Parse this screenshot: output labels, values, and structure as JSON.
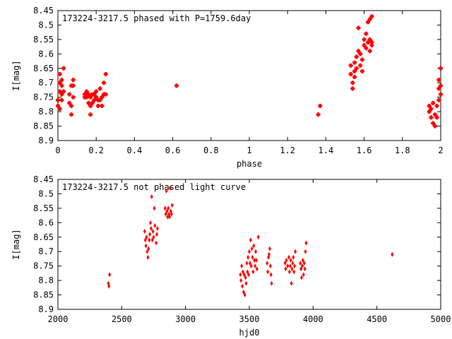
{
  "chart_data": [
    {
      "type": "scatter",
      "title": "173224-3217.5 phased with P=1759.6day",
      "xlabel": "phase",
      "ylabel": "I[mag]",
      "xlim": [
        0,
        2
      ],
      "ylim": [
        8.45,
        8.9
      ],
      "y_inverted": true,
      "xticks": [
        "0",
        "0.2",
        "0.4",
        "0.6",
        "0.8",
        "1",
        "1.2",
        "1.4",
        "1.6",
        "1.8",
        "2"
      ],
      "yticks": [
        "8.45",
        "8.5",
        "8.55",
        "8.6",
        "8.65",
        "8.7",
        "8.75",
        "8.8",
        "8.85",
        "8.9"
      ],
      "marker": "plus",
      "color": "#ff0000",
      "series": [
        {
          "points": [
            [
              0.0,
              8.76
            ],
            [
              0.0,
              8.78
            ],
            [
              0.01,
              8.79
            ],
            [
              0.01,
              8.7
            ],
            [
              0.01,
              8.73
            ],
            [
              0.01,
              8.67
            ],
            [
              0.02,
              8.74
            ],
            [
              0.02,
              8.71
            ],
            [
              0.02,
              8.76
            ],
            [
              0.02,
              8.69
            ],
            [
              0.03,
              8.65
            ],
            [
              0.03,
              8.73
            ],
            [
              0.06,
              8.74
            ],
            [
              0.06,
              8.77
            ],
            [
              0.07,
              8.71
            ],
            [
              0.07,
              8.78
            ],
            [
              0.07,
              8.81
            ],
            [
              0.08,
              8.75
            ],
            [
              0.08,
              8.71
            ],
            [
              0.08,
              8.69
            ],
            [
              0.14,
              8.74
            ],
            [
              0.14,
              8.75
            ],
            [
              0.15,
              8.73
            ],
            [
              0.15,
              8.75
            ],
            [
              0.16,
              8.77
            ],
            [
              0.16,
              8.74
            ],
            [
              0.17,
              8.78
            ],
            [
              0.17,
              8.81
            ],
            [
              0.17,
              8.75
            ],
            [
              0.18,
              8.74
            ],
            [
              0.18,
              8.77
            ],
            [
              0.19,
              8.76
            ],
            [
              0.19,
              8.74
            ],
            [
              0.2,
              8.75
            ],
            [
              0.2,
              8.73
            ],
            [
              0.21,
              8.76
            ],
            [
              0.21,
              8.78
            ],
            [
              0.22,
              8.72
            ],
            [
              0.22,
              8.76
            ],
            [
              0.23,
              8.75
            ],
            [
              0.23,
              8.78
            ],
            [
              0.24,
              8.74
            ],
            [
              0.24,
              8.7
            ],
            [
              0.25,
              8.67
            ],
            [
              0.25,
              8.74
            ],
            [
              0.62,
              8.71
            ],
            [
              1.36,
              8.81
            ],
            [
              1.37,
              8.78
            ],
            [
              1.53,
              8.64
            ],
            [
              1.53,
              8.67
            ],
            [
              1.54,
              8.7
            ],
            [
              1.54,
              8.72
            ],
            [
              1.55,
              8.63
            ],
            [
              1.55,
              8.66
            ],
            [
              1.55,
              8.68
            ],
            [
              1.56,
              8.61
            ],
            [
              1.56,
              8.65
            ],
            [
              1.57,
              8.51
            ],
            [
              1.57,
              8.59
            ],
            [
              1.58,
              8.64
            ],
            [
              1.58,
              8.6
            ],
            [
              1.59,
              8.66
            ],
            [
              1.59,
              8.62
            ],
            [
              1.6,
              8.55
            ],
            [
              1.6,
              8.57
            ],
            [
              1.61,
              8.53
            ],
            [
              1.61,
              8.58
            ],
            [
              1.62,
              8.49
            ],
            [
              1.62,
              8.56
            ],
            [
              1.63,
              8.55
            ],
            [
              1.63,
              8.59
            ],
            [
              1.63,
              8.48
            ],
            [
              1.64,
              8.57
            ],
            [
              1.64,
              8.47
            ],
            [
              1.64,
              8.56
            ],
            [
              1.94,
              8.78
            ],
            [
              1.94,
              8.8
            ],
            [
              1.95,
              8.79
            ],
            [
              1.95,
              8.82
            ],
            [
              1.96,
              8.77
            ],
            [
              1.96,
              8.84
            ],
            [
              1.97,
              8.81
            ],
            [
              1.97,
              8.85
            ],
            [
              1.98,
              8.78
            ],
            [
              1.98,
              8.82
            ],
            [
              1.99,
              8.72
            ],
            [
              1.99,
              8.76
            ],
            [
              1.99,
              8.69
            ],
            [
              2.0,
              8.74
            ],
            [
              2.0,
              8.65
            ],
            [
              2.0,
              8.71
            ]
          ]
        }
      ]
    },
    {
      "type": "scatter",
      "title": "173224-3217.5 not phased light curve",
      "xlabel": "hjd0",
      "ylabel": "I[mag]",
      "xlim": [
        2000,
        5000
      ],
      "ylim": [
        8.45,
        8.9
      ],
      "y_inverted": true,
      "xticks": [
        "2000",
        "2500",
        "3000",
        "3500",
        "4000",
        "4500",
        "5000"
      ],
      "yticks": [
        "8.45",
        "8.5",
        "8.55",
        "8.6",
        "8.65",
        "8.7",
        "8.75",
        "8.8",
        "8.85",
        "8.9"
      ],
      "marker": "diamond",
      "color": "#ff0000",
      "series": [
        {
          "points": [
            [
              2395,
              8.81
            ],
            [
              2400,
              8.82
            ],
            [
              2405,
              8.78
            ],
            [
              2680,
              8.63
            ],
            [
              2685,
              8.66
            ],
            [
              2690,
              8.68
            ],
            [
              2695,
              8.65
            ],
            [
              2700,
              8.7
            ],
            [
              2705,
              8.72
            ],
            [
              2710,
              8.69
            ],
            [
              2715,
              8.66
            ],
            [
              2720,
              8.64
            ],
            [
              2725,
              8.6
            ],
            [
              2730,
              8.62
            ],
            [
              2735,
              8.51
            ],
            [
              2740,
              8.66
            ],
            [
              2745,
              8.63
            ],
            [
              2750,
              8.65
            ],
            [
              2755,
              8.55
            ],
            [
              2760,
              8.61
            ],
            [
              2770,
              8.67
            ],
            [
              2775,
              8.64
            ],
            [
              2780,
              8.62
            ],
            [
              2840,
              8.55
            ],
            [
              2845,
              8.57
            ],
            [
              2850,
              8.49
            ],
            [
              2855,
              8.56
            ],
            [
              2860,
              8.58
            ],
            [
              2865,
              8.55
            ],
            [
              2870,
              8.57
            ],
            [
              2875,
              8.58
            ],
            [
              2880,
              8.48
            ],
            [
              2885,
              8.56
            ],
            [
              2890,
              8.57
            ],
            [
              2895,
              8.54
            ],
            [
              3430,
              8.78
            ],
            [
              3435,
              8.8
            ],
            [
              3440,
              8.75
            ],
            [
              3445,
              8.82
            ],
            [
              3450,
              8.77
            ],
            [
              3455,
              8.84
            ],
            [
              3460,
              8.78
            ],
            [
              3465,
              8.85
            ],
            [
              3470,
              8.79
            ],
            [
              3475,
              8.81
            ],
            [
              3480,
              8.74
            ],
            [
              3485,
              8.77
            ],
            [
              3490,
              8.72
            ],
            [
              3495,
              8.78
            ],
            [
              3500,
              8.7
            ],
            [
              3505,
              8.74
            ],
            [
              3510,
              8.66
            ],
            [
              3515,
              8.75
            ],
            [
              3520,
              8.69
            ],
            [
              3525,
              8.72
            ],
            [
              3530,
              8.77
            ],
            [
              3535,
              8.68
            ],
            [
              3540,
              8.73
            ],
            [
              3545,
              8.75
            ],
            [
              3550,
              8.7
            ],
            [
              3555,
              8.73
            ],
            [
              3560,
              8.76
            ],
            [
              3570,
              8.65
            ],
            [
              3640,
              8.74
            ],
            [
              3645,
              8.77
            ],
            [
              3650,
              8.72
            ],
            [
              3655,
              8.71
            ],
            [
              3660,
              8.69
            ],
            [
              3665,
              8.75
            ],
            [
              3670,
              8.78
            ],
            [
              3675,
              8.81
            ],
            [
              3780,
              8.74
            ],
            [
              3785,
              8.76
            ],
            [
              3790,
              8.73
            ],
            [
              3800,
              8.75
            ],
            [
              3810,
              8.72
            ],
            [
              3815,
              8.77
            ],
            [
              3820,
              8.75
            ],
            [
              3825,
              8.73
            ],
            [
              3830,
              8.81
            ],
            [
              3835,
              8.76
            ],
            [
              3840,
              8.74
            ],
            [
              3845,
              8.72
            ],
            [
              3850,
              8.77
            ],
            [
              3855,
              8.75
            ],
            [
              3860,
              8.7
            ],
            [
              3900,
              8.74
            ],
            [
              3905,
              8.76
            ],
            [
              3910,
              8.79
            ],
            [
              3915,
              8.75
            ],
            [
              3920,
              8.73
            ],
            [
              3925,
              8.78
            ],
            [
              3930,
              8.74
            ],
            [
              3935,
              8.76
            ],
            [
              3940,
              8.7
            ],
            [
              3945,
              8.67
            ],
            [
              4620,
              8.71
            ]
          ]
        }
      ]
    }
  ]
}
